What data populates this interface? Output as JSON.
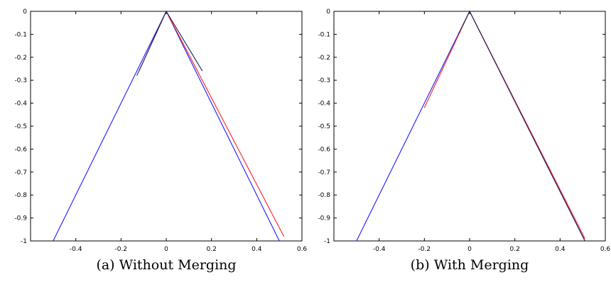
{
  "chart_data": [
    {
      "type": "line",
      "caption": "(a)  Without Merging",
      "xlim": [
        -0.6,
        0.6
      ],
      "ylim": [
        -1,
        0
      ],
      "xticks": [
        -0.4,
        -0.2,
        0,
        0.2,
        0.4,
        0.6
      ],
      "xtick_labels": [
        "-0.4",
        "-0.2",
        "0",
        "0.2",
        "0.4",
        "0.6"
      ],
      "yticks": [
        0,
        -0.1,
        -0.2,
        -0.3,
        -0.4,
        -0.5,
        -0.6,
        -0.7,
        -0.8,
        -0.9,
        -1
      ],
      "ytick_labels": [
        "0",
        "-0.1",
        "-0.2",
        "-0.3",
        "-0.4",
        "-0.5",
        "-0.6",
        "-0.7",
        "-0.8",
        "-0.9",
        "-1"
      ],
      "series": [
        {
          "color": "#1a1aff",
          "x": [
            -0.5,
            0,
            0.5
          ],
          "y": [
            -1,
            0,
            -1
          ]
        },
        {
          "color": "#ff2020",
          "x": [
            -0.12,
            0,
            0.52
          ],
          "y": [
            -0.26,
            0,
            -0.98
          ]
        },
        {
          "color": "#202050",
          "x": [
            -0.13,
            0,
            0.16
          ],
          "y": [
            -0.28,
            0,
            -0.26
          ]
        }
      ]
    },
    {
      "type": "line",
      "caption": "(b)  With Merging",
      "xlim": [
        -0.6,
        0.6
      ],
      "ylim": [
        -1,
        0
      ],
      "xticks": [
        -0.4,
        -0.2,
        0,
        0.2,
        0.4,
        0.6
      ],
      "xtick_labels": [
        "-0.4",
        "-0.2",
        "0",
        "0.2",
        "0.4",
        "0.6"
      ],
      "yticks": [
        0,
        -0.1,
        -0.2,
        -0.3,
        -0.4,
        -0.5,
        -0.6,
        -0.7,
        -0.8,
        -0.9,
        -1
      ],
      "ytick_labels": [
        "0",
        "-0.1",
        "-0.2",
        "-0.3",
        "-0.4",
        "-0.5",
        "-0.6",
        "-0.7",
        "-0.8",
        "-0.9",
        "-1"
      ],
      "series": [
        {
          "color": "#1a1aff",
          "x": [
            -0.5,
            0,
            0.51
          ],
          "y": [
            -1,
            0,
            -1
          ]
        },
        {
          "color": "#ff2020",
          "x": [
            -0.2,
            0,
            0.51
          ],
          "y": [
            -0.42,
            0,
            -0.99
          ]
        },
        {
          "color": "#202050",
          "x": [
            -0.05,
            0,
            0.51
          ],
          "y": [
            -0.1,
            0,
            -1
          ]
        }
      ]
    }
  ]
}
